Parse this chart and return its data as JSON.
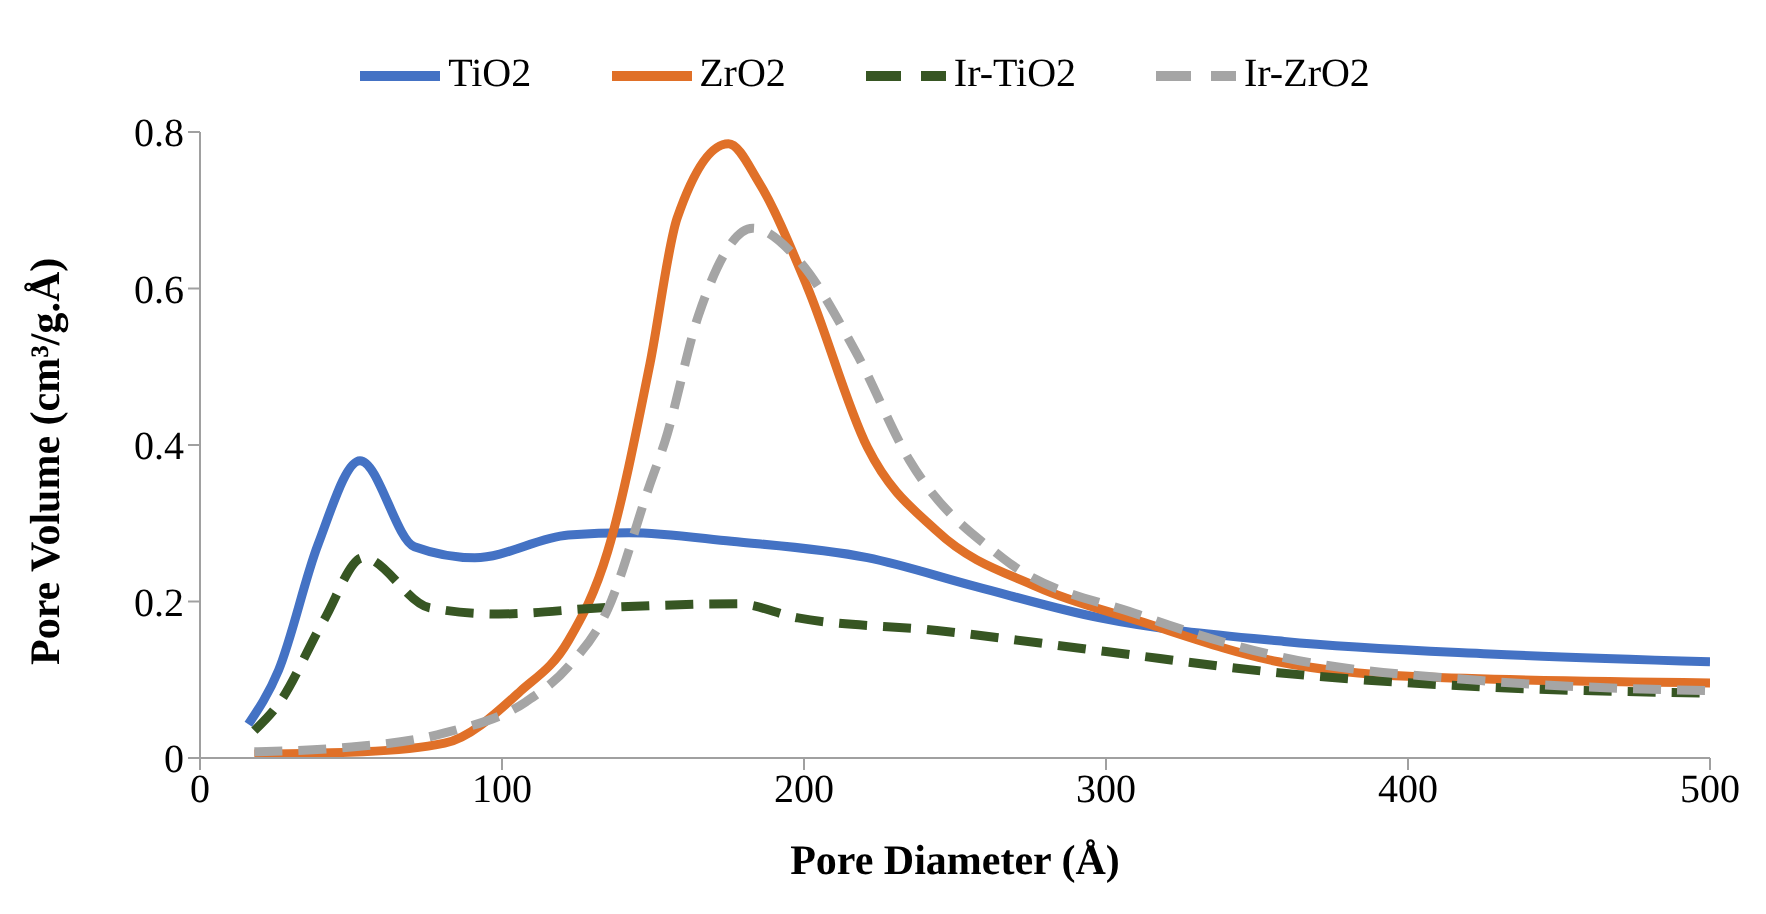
{
  "chart_data": {
    "type": "line",
    "xlabel": "Pore Diameter (Å)",
    "ylabel": "Pore Volume (cm³/g.Å)",
    "xlim": [
      0,
      500
    ],
    "xticks": [
      0,
      100,
      200,
      300,
      400,
      500
    ],
    "ylim": [
      0,
      0.8
    ],
    "yticks": [
      0,
      0.2,
      0.4,
      0.6,
      0.8
    ],
    "grid": false,
    "legend": "top",
    "marker": "none",
    "series": [
      {
        "name": "TiO2",
        "color": "#4472c4",
        "line_style": "solid",
        "x": [
          16,
          26,
          39,
          53,
          71,
          91,
          122,
          142,
          176,
          221,
          257,
          298,
          359,
          427,
          500
        ],
        "values": [
          0.043,
          0.112,
          0.272,
          0.38,
          0.27,
          0.256,
          0.285,
          0.288,
          0.277,
          0.256,
          0.219,
          0.179,
          0.149,
          0.133,
          0.123
        ]
      },
      {
        "name": "ZrO2",
        "color": "#e07028",
        "line_style": "solid",
        "x": [
          18,
          54,
          81,
          106,
          122,
          135,
          149,
          158,
          175,
          185,
          201,
          221,
          244,
          277,
          311,
          357,
          402,
          500
        ],
        "values": [
          0.005,
          0.008,
          0.019,
          0.085,
          0.15,
          0.264,
          0.504,
          0.69,
          0.785,
          0.736,
          0.603,
          0.397,
          0.29,
          0.219,
          0.175,
          0.123,
          0.104,
          0.096
        ]
      },
      {
        "name": "Ir-TiO2",
        "color": "#375623",
        "line_style": "dashed",
        "x": [
          18,
          26,
          41,
          54,
          76,
          99,
          133,
          178,
          198,
          244,
          300,
          357,
          424,
          500
        ],
        "values": [
          0.035,
          0.069,
          0.176,
          0.256,
          0.192,
          0.184,
          0.192,
          0.197,
          0.179,
          0.163,
          0.136,
          0.109,
          0.091,
          0.083
        ]
      },
      {
        "name": "Ir-ZrO2",
        "color": "#a5a5a5",
        "line_style": "dashed",
        "x": [
          18,
          47,
          81,
          108,
          122,
          135,
          149,
          154,
          165,
          183,
          198,
          217,
          235,
          266,
          311,
          357,
          424,
          500
        ],
        "values": [
          0.008,
          0.013,
          0.032,
          0.072,
          0.117,
          0.19,
          0.35,
          0.405,
          0.565,
          0.677,
          0.637,
          0.52,
          0.38,
          0.255,
          0.183,
          0.13,
          0.099,
          0.086
        ]
      }
    ]
  }
}
